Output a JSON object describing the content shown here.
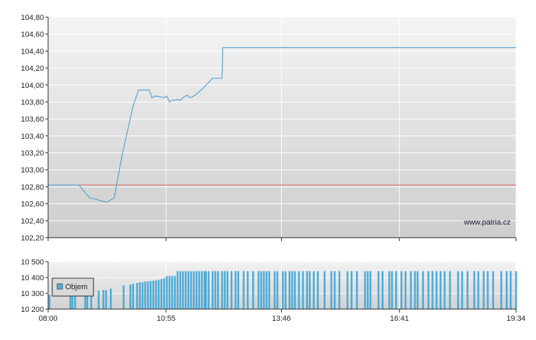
{
  "chart_data": [
    {
      "type": "line",
      "panel": "price",
      "ylim": [
        102.2,
        104.8
      ],
      "y_ticks": [
        "104,80",
        "104,60",
        "104,40",
        "104,20",
        "104,00",
        "103,80",
        "103,60",
        "103,40",
        "103,20",
        "103,00",
        "102,80",
        "102,60",
        "102,40",
        "102,20"
      ],
      "y_tick_values": [
        104.8,
        104.6,
        104.4,
        104.2,
        104.0,
        103.8,
        103.6,
        103.4,
        103.2,
        103.0,
        102.8,
        102.6,
        102.4,
        102.2
      ],
      "x_range_minutes": [
        0,
        694
      ],
      "x_tick_minutes": [
        0,
        175,
        346,
        521,
        694
      ],
      "reference_line": {
        "value": 102.82,
        "color": "#e06a6a"
      },
      "series": [
        {
          "color": "#5aa6d2",
          "x": [
            0,
            26,
            36,
            46,
            54,
            62,
            72,
            80,
            88,
            98,
            110,
            126,
            134,
            140,
            142,
            150,
            154,
            156,
            158,
            168,
            172,
            176,
            180,
            184,
            188,
            192,
            196,
            200,
            206,
            210,
            214,
            218,
            224,
            232,
            244,
            252,
            258,
            259,
            694
          ],
          "y": [
            102.82,
            102.82,
            102.82,
            102.82,
            102.74,
            102.67,
            102.65,
            102.63,
            102.62,
            102.67,
            103.18,
            103.75,
            103.94,
            103.94,
            103.94,
            103.94,
            103.85,
            103.86,
            103.87,
            103.86,
            103.85,
            103.87,
            103.8,
            103.82,
            103.82,
            103.83,
            103.82,
            103.85,
            103.88,
            103.85,
            103.86,
            103.88,
            103.92,
            103.98,
            104.08,
            104.08,
            104.08,
            104.44,
            104.44
          ]
        }
      ]
    },
    {
      "type": "bar",
      "panel": "volume",
      "ylim": [
        10200,
        10500
      ],
      "y_ticks": [
        "10 500",
        "10 400",
        "10 300",
        "10 200"
      ],
      "y_tick_values": [
        10500,
        10400,
        10300,
        10200
      ],
      "x_ticks": [
        "08:00",
        "10:55",
        "13:46",
        "16:41",
        "19:34"
      ],
      "x_tick_minutes": [
        0,
        175,
        346,
        521,
        694
      ],
      "legend": "Objem",
      "series": [
        {
          "name": "Objem",
          "color": "#4aaad8",
          "x": [
            2,
            33,
            36,
            40,
            55,
            58,
            64,
            75,
            82,
            86,
            93,
            112,
            122,
            126,
            132,
            136,
            140,
            144,
            148,
            152,
            156,
            160,
            164,
            168,
            172,
            176,
            180,
            184,
            188,
            192,
            196,
            200,
            204,
            208,
            212,
            216,
            220,
            224,
            228,
            232,
            234,
            238,
            244,
            248,
            252,
            258,
            262,
            266,
            272,
            278,
            282,
            290,
            296,
            304,
            312,
            316,
            320,
            324,
            328,
            336,
            340,
            348,
            352,
            358,
            362,
            366,
            372,
            378,
            384,
            388,
            394,
            400,
            410,
            420,
            425,
            432,
            444,
            450,
            458,
            470,
            474,
            478,
            490,
            496,
            506,
            510,
            516,
            524,
            530,
            538,
            544,
            548,
            556,
            564,
            570,
            576,
            582,
            588,
            596,
            608,
            614,
            622,
            632,
            638,
            646,
            652,
            660,
            672,
            680,
            686,
            694
          ],
          "values": [
            10290,
            10280,
            10280,
            10280,
            10300,
            10300,
            10305,
            10315,
            10320,
            10320,
            10330,
            10350,
            10355,
            10360,
            10365,
            10370,
            10370,
            10375,
            10375,
            10378,
            10380,
            10382,
            10385,
            10390,
            10395,
            10410,
            10410,
            10410,
            10410,
            10440,
            10440,
            10440,
            10440,
            10440,
            10440,
            10440,
            10440,
            10440,
            10440,
            10440,
            10440,
            10440,
            10440,
            10440,
            10440,
            10440,
            10440,
            10440,
            10440,
            10440,
            10440,
            10440,
            10440,
            10440,
            10440,
            10440,
            10440,
            10440,
            10440,
            10440,
            10440,
            10440,
            10440,
            10440,
            10440,
            10440,
            10440,
            10440,
            10440,
            10440,
            10440,
            10440,
            10440,
            10440,
            10440,
            10440,
            10440,
            10440,
            10440,
            10440,
            10440,
            10440,
            10440,
            10440,
            10440,
            10440,
            10440,
            10440,
            10440,
            10440,
            10440,
            10440,
            10440,
            10440,
            10440,
            10440,
            10440,
            10440,
            10440,
            10440,
            10440,
            10440,
            10440,
            10440,
            10440,
            10440,
            10440,
            10440,
            10440,
            10440,
            10440
          ]
        }
      ]
    }
  ],
  "watermark": "www.patria.cz",
  "colors": {
    "price_line": "#5aa6d2",
    "reference_line": "#e06a6a",
    "volume_bar": "#4aaad8"
  }
}
